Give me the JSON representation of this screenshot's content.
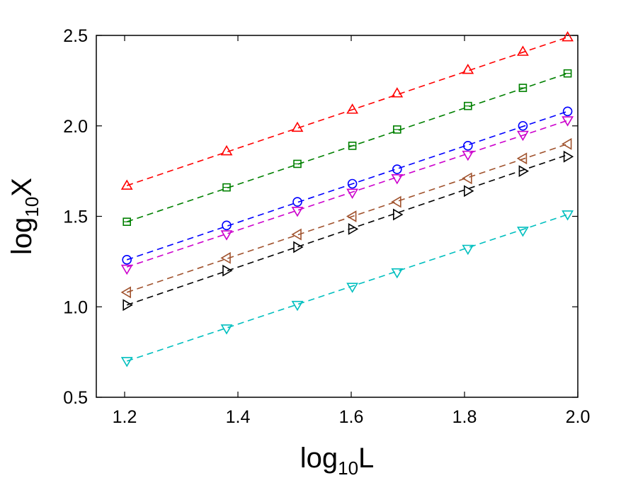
{
  "chart_data": {
    "type": "line",
    "xlabel": {
      "base": "log",
      "sub": "10",
      "main": "L"
    },
    "ylabel": {
      "base": "log",
      "sub": "10",
      "main": "X"
    },
    "xlim": [
      1.15,
      2.0
    ],
    "ylim": [
      0.5,
      2.5
    ],
    "xticks": [
      1.2,
      1.4,
      1.6,
      1.8,
      2.0
    ],
    "xtick_labels": [
      "1.2",
      "1.4",
      "1.6",
      "1.8",
      "2.0"
    ],
    "yticks": [
      0.5,
      1.0,
      1.5,
      2.0,
      2.5
    ],
    "ytick_labels": [
      "0.5",
      "1.0",
      "1.5",
      "2.0",
      "2.5"
    ],
    "grid": false,
    "x": [
      1.204,
      1.38,
      1.505,
      1.602,
      1.681,
      1.806,
      1.903,
      1.982
    ],
    "series": [
      {
        "name": "up-triangle",
        "marker": "triangle-up",
        "color": "#ff0000",
        "line_style": "dashed",
        "values": [
          1.67,
          1.86,
          1.99,
          2.09,
          2.18,
          2.31,
          2.41,
          2.49
        ],
        "fit": [
          1.67,
          2.49
        ]
      },
      {
        "name": "square",
        "marker": "square",
        "color": "#008000",
        "line_style": "dashed",
        "values": [
          1.47,
          1.66,
          1.79,
          1.89,
          1.98,
          2.11,
          2.21,
          2.29
        ],
        "fit": [
          1.47,
          2.29
        ]
      },
      {
        "name": "circle",
        "marker": "circle",
        "color": "#0000ff",
        "line_style": "dashed",
        "values": [
          1.26,
          1.45,
          1.58,
          1.68,
          1.76,
          1.89,
          2.0,
          2.08
        ],
        "fit": [
          1.26,
          2.08
        ]
      },
      {
        "name": "down-triangle-magenta",
        "marker": "triangle-down",
        "color": "#cc00cc",
        "line_style": "dashed",
        "values": [
          1.21,
          1.4,
          1.53,
          1.63,
          1.71,
          1.84,
          1.95,
          2.03
        ],
        "fit": [
          1.22,
          2.03
        ]
      },
      {
        "name": "left-triangle",
        "marker": "triangle-left",
        "color": "#a0522d",
        "line_style": "dashed",
        "values": [
          1.08,
          1.27,
          1.4,
          1.5,
          1.58,
          1.71,
          1.82,
          1.9
        ],
        "fit": [
          1.08,
          1.9
        ]
      },
      {
        "name": "right-triangle",
        "marker": "triangle-right",
        "color": "#000000",
        "line_style": "dashed",
        "values": [
          1.01,
          1.2,
          1.33,
          1.43,
          1.51,
          1.64,
          1.75,
          1.83
        ],
        "fit": [
          1.01,
          1.84
        ]
      },
      {
        "name": "down-triangle-cyan",
        "marker": "triangle-down",
        "color": "#00bfbf",
        "line_style": "dashed",
        "values": [
          0.7,
          0.88,
          1.01,
          1.11,
          1.19,
          1.32,
          1.42,
          1.51
        ],
        "fit": [
          0.7,
          1.51
        ]
      }
    ]
  }
}
